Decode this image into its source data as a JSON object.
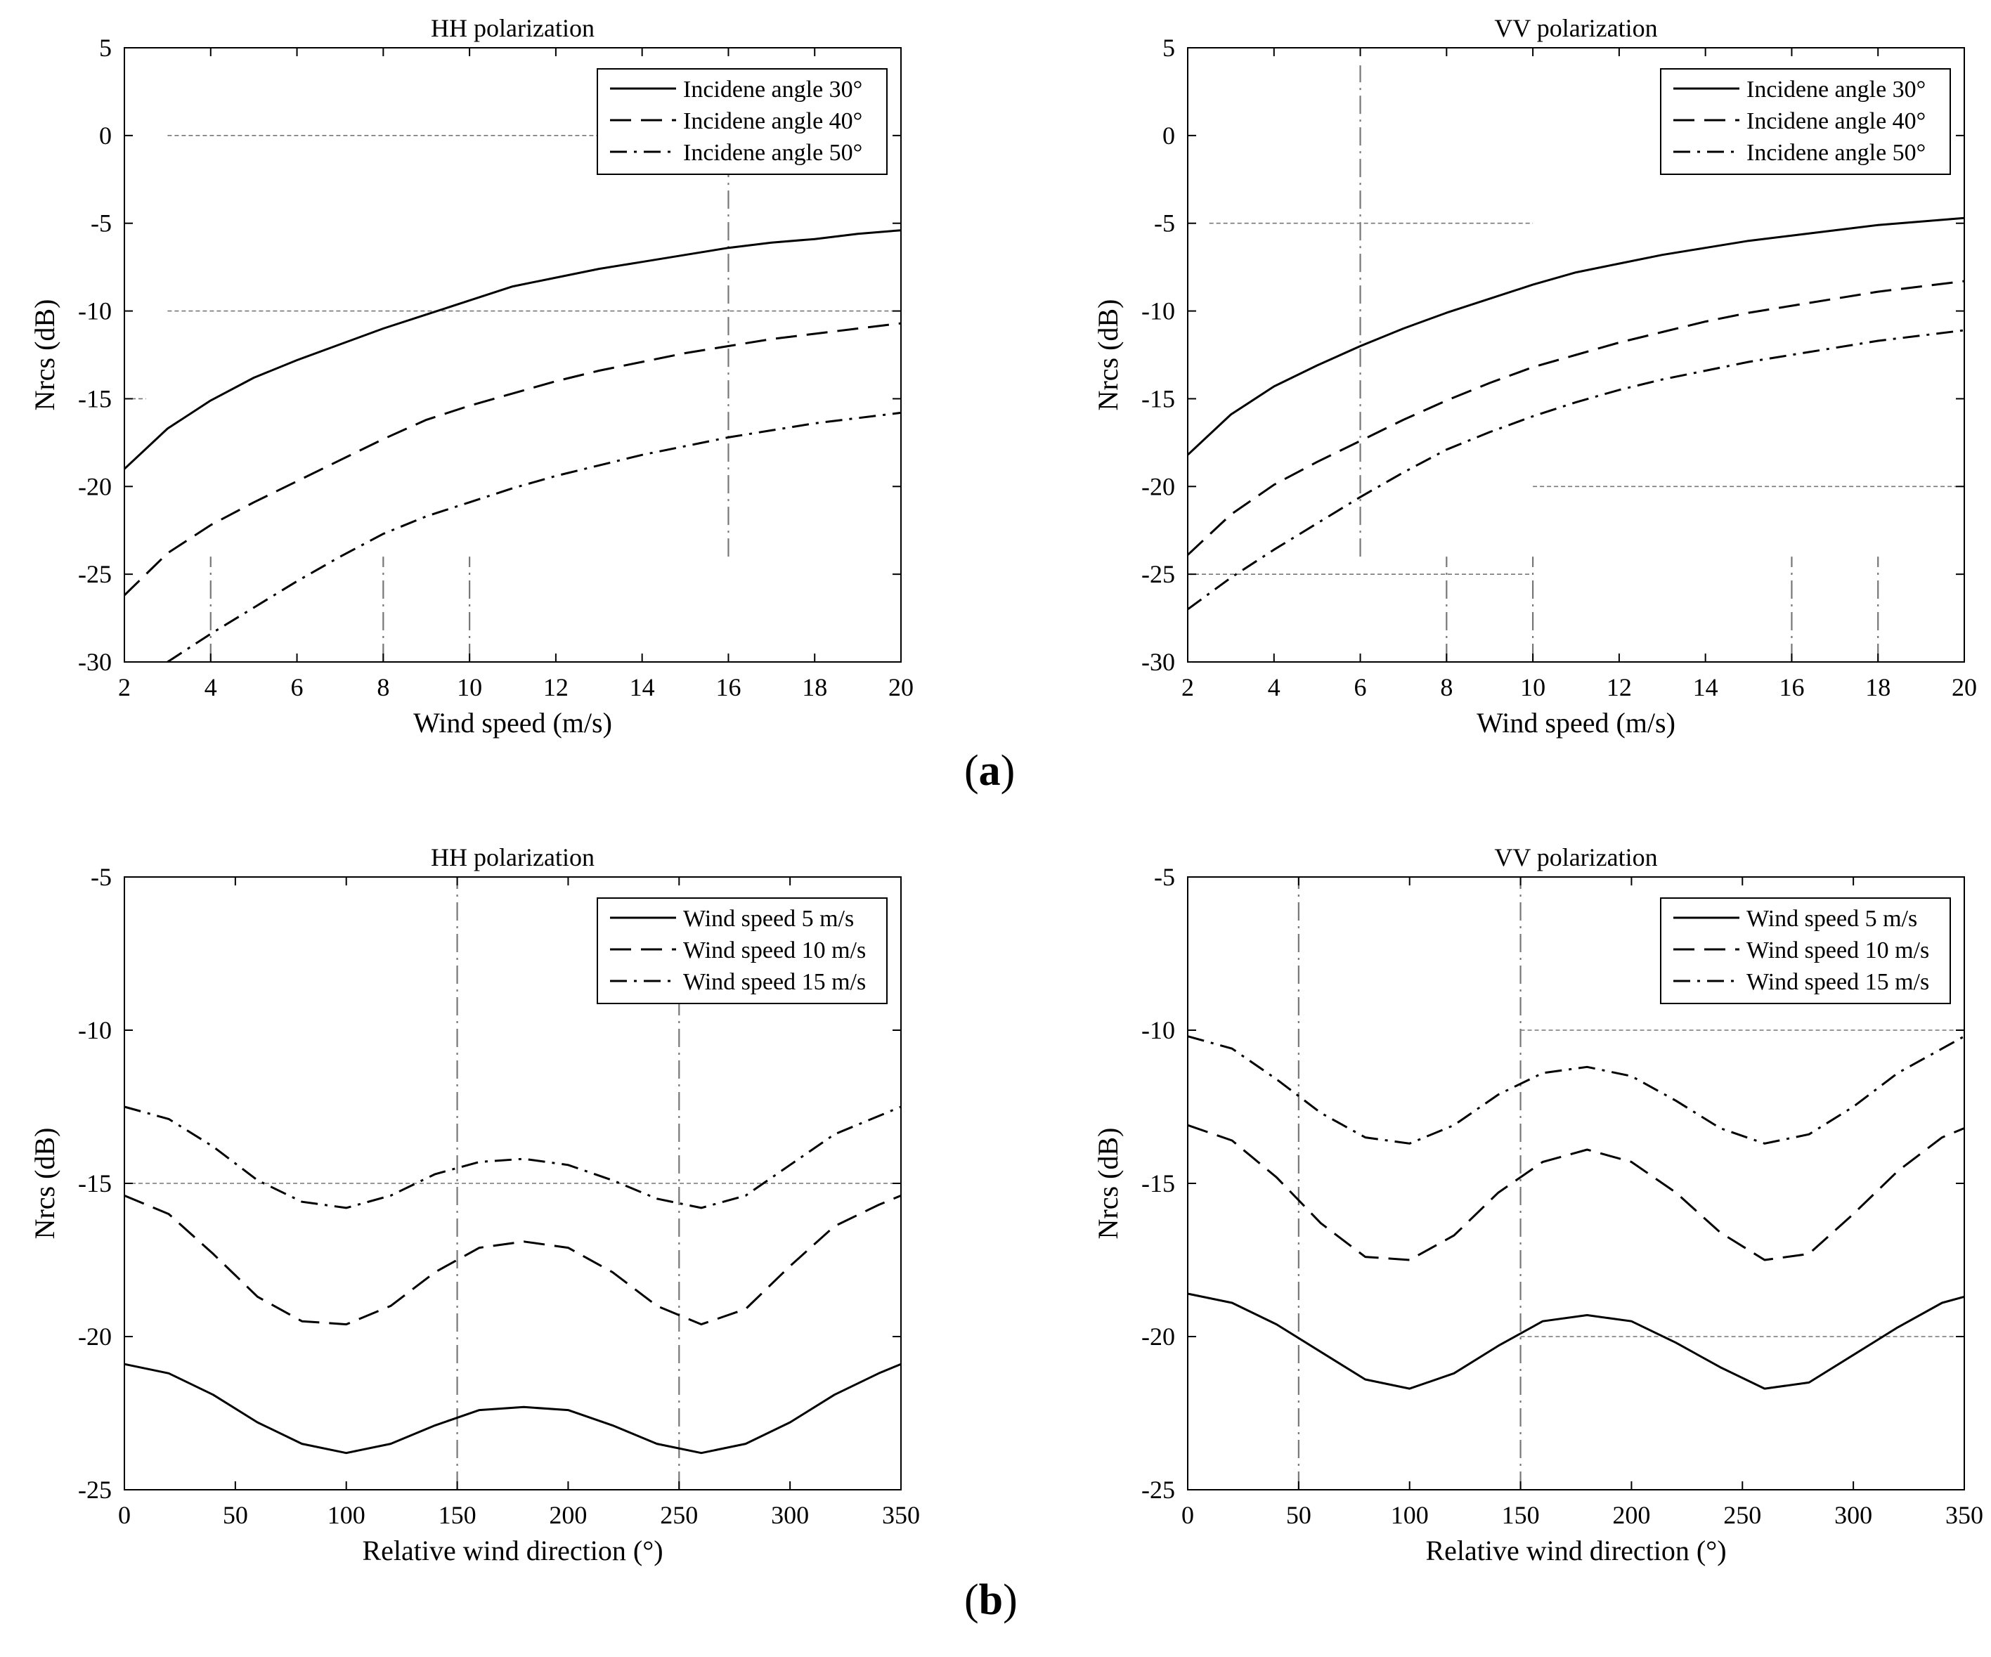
{
  "figure": {
    "panel_labels": {
      "a": "a",
      "b": "b"
    }
  },
  "chart_data": [
    {
      "id": "a-hh",
      "type": "line",
      "title": "HH polarization",
      "xlabel": "Wind speed (m/s)",
      "ylabel": "Nrcs (dB)",
      "xlim": [
        2,
        20
      ],
      "ylim": [
        -30,
        5
      ],
      "xticks": [
        2,
        4,
        6,
        8,
        10,
        12,
        14,
        16,
        18,
        20
      ],
      "yticks": [
        5,
        0,
        -5,
        -10,
        -15,
        -20,
        -25,
        -30
      ],
      "legend_position": "top-right",
      "series": [
        {
          "name": "Incidene angle 30°",
          "style": "solid",
          "x": [
            2,
            3,
            4,
            5,
            6,
            7,
            8,
            9,
            10,
            11,
            12,
            13,
            14,
            15,
            16,
            17,
            18,
            19,
            20
          ],
          "y": [
            -19,
            -16.7,
            -15.1,
            -13.8,
            -12.8,
            -11.9,
            -11.0,
            -10.2,
            -9.4,
            -8.6,
            -8.1,
            -7.6,
            -7.2,
            -6.8,
            -6.4,
            -6.1,
            -5.9,
            -5.6,
            -5.4
          ]
        },
        {
          "name": "Incidene angle 40°",
          "style": "dashed",
          "x": [
            2,
            3,
            4,
            5,
            6,
            7,
            8,
            9,
            10,
            11,
            12,
            13,
            14,
            15,
            16,
            17,
            18,
            19,
            20
          ],
          "y": [
            -26.2,
            -23.8,
            -22.2,
            -20.9,
            -19.7,
            -18.5,
            -17.3,
            -16.2,
            -15.4,
            -14.7,
            -14.0,
            -13.4,
            -12.9,
            -12.4,
            -12.0,
            -11.6,
            -11.3,
            -11.0,
            -10.7
          ]
        },
        {
          "name": "Incidene angle 50°",
          "style": "dash-dot",
          "x": [
            3,
            4,
            5,
            6,
            7,
            8,
            9,
            10,
            11,
            12,
            13,
            14,
            15,
            16,
            17,
            18,
            19,
            20
          ],
          "y": [
            -30.0,
            -28.4,
            -26.9,
            -25.4,
            -24.0,
            -22.7,
            -21.7,
            -20.9,
            -20.1,
            -19.4,
            -18.8,
            -18.2,
            -17.7,
            -17.2,
            -16.8,
            -16.4,
            -16.1,
            -15.8
          ]
        }
      ],
      "reference_lines": [
        {
          "orientation": "h",
          "value": 0,
          "from": 3,
          "to": 16
        },
        {
          "orientation": "h",
          "value": -10,
          "from": 3,
          "to": 20
        },
        {
          "orientation": "h",
          "value": -15,
          "from": 2,
          "to": 2.5
        },
        {
          "orientation": "v",
          "value": 16,
          "from": -24,
          "to": 0
        },
        {
          "orientation": "v",
          "value": 4,
          "from": -30,
          "to": -24
        },
        {
          "orientation": "v",
          "value": 8,
          "from": -30,
          "to": -24
        },
        {
          "orientation": "v",
          "value": 10,
          "from": -30,
          "to": -24
        }
      ]
    },
    {
      "id": "a-vv",
      "type": "line",
      "title": "VV polarization",
      "xlabel": "Wind speed (m/s)",
      "ylabel": "Nrcs (dB)",
      "xlim": [
        2,
        20
      ],
      "ylim": [
        -30,
        5
      ],
      "xticks": [
        2,
        4,
        6,
        8,
        10,
        12,
        14,
        16,
        18,
        20
      ],
      "yticks": [
        5,
        0,
        -5,
        -10,
        -15,
        -20,
        -25,
        -30
      ],
      "legend_position": "top-right",
      "series": [
        {
          "name": "Incidene angle 30°",
          "style": "solid",
          "x": [
            2,
            3,
            4,
            5,
            6,
            7,
            8,
            9,
            10,
            11,
            12,
            13,
            14,
            15,
            16,
            17,
            18,
            19,
            20
          ],
          "y": [
            -18.2,
            -15.9,
            -14.3,
            -13.1,
            -12.0,
            -11.0,
            -10.1,
            -9.3,
            -8.5,
            -7.8,
            -7.3,
            -6.8,
            -6.4,
            -6.0,
            -5.7,
            -5.4,
            -5.1,
            -4.9,
            -4.7
          ]
        },
        {
          "name": "Incidene angle 40°",
          "style": "dashed",
          "x": [
            2,
            3,
            4,
            5,
            6,
            7,
            8,
            9,
            10,
            11,
            12,
            13,
            14,
            15,
            16,
            17,
            18,
            19,
            20
          ],
          "y": [
            -23.9,
            -21.6,
            -19.9,
            -18.6,
            -17.4,
            -16.2,
            -15.1,
            -14.1,
            -13.2,
            -12.5,
            -11.8,
            -11.2,
            -10.6,
            -10.1,
            -9.7,
            -9.3,
            -8.9,
            -8.6,
            -8.3
          ]
        },
        {
          "name": "Incidene angle 50°",
          "style": "dash-dot",
          "x": [
            2,
            3,
            4,
            5,
            6,
            7,
            8,
            9,
            10,
            11,
            12,
            13,
            14,
            15,
            16,
            17,
            18,
            19,
            20
          ],
          "y": [
            -27.0,
            -25.2,
            -23.6,
            -22.1,
            -20.6,
            -19.2,
            -17.9,
            -16.9,
            -16.0,
            -15.2,
            -14.5,
            -13.9,
            -13.4,
            -12.9,
            -12.5,
            -12.1,
            -11.7,
            -11.4,
            -11.1
          ]
        }
      ],
      "reference_lines": [
        {
          "orientation": "h",
          "value": -5,
          "from": 2.5,
          "to": 10
        },
        {
          "orientation": "h",
          "value": -25,
          "from": 2,
          "to": 10
        },
        {
          "orientation": "h",
          "value": -20,
          "from": 10,
          "to": 20
        },
        {
          "orientation": "v",
          "value": 6,
          "from": -24,
          "to": 4
        },
        {
          "orientation": "v",
          "value": 8,
          "from": -30,
          "to": -24
        },
        {
          "orientation": "v",
          "value": 10,
          "from": -30,
          "to": -24
        },
        {
          "orientation": "v",
          "value": 16,
          "from": -30,
          "to": -24
        },
        {
          "orientation": "v",
          "value": 18,
          "from": -30,
          "to": -24
        }
      ]
    },
    {
      "id": "b-hh",
      "type": "line",
      "title": "HH polarization",
      "xlabel": "Relative wind direction (°)",
      "ylabel": "Nrcs (dB)",
      "xlim": [
        0,
        350
      ],
      "ylim": [
        -25,
        -5
      ],
      "xticks": [
        0,
        50,
        100,
        150,
        200,
        250,
        300,
        350
      ],
      "yticks": [
        -5,
        -10,
        -15,
        -20,
        -25
      ],
      "legend_position": "top-right",
      "series": [
        {
          "name": "Wind speed 5 m/s",
          "style": "solid",
          "x": [
            0,
            20,
            40,
            60,
            80,
            100,
            120,
            140,
            160,
            180,
            200,
            220,
            240,
            260,
            280,
            300,
            320,
            340,
            350
          ],
          "y": [
            -20.9,
            -21.2,
            -21.9,
            -22.8,
            -23.5,
            -23.8,
            -23.5,
            -22.9,
            -22.4,
            -22.3,
            -22.4,
            -22.9,
            -23.5,
            -23.8,
            -23.5,
            -22.8,
            -21.9,
            -21.2,
            -20.9
          ]
        },
        {
          "name": "Wind speed 10 m/s",
          "style": "dashed",
          "x": [
            0,
            20,
            40,
            60,
            80,
            100,
            120,
            140,
            160,
            180,
            200,
            220,
            240,
            260,
            280,
            300,
            320,
            340,
            350
          ],
          "y": [
            -15.4,
            -16.0,
            -17.3,
            -18.7,
            -19.5,
            -19.6,
            -19.0,
            -17.9,
            -17.1,
            -16.9,
            -17.1,
            -17.9,
            -19.0,
            -19.6,
            -19.1,
            -17.7,
            -16.4,
            -15.7,
            -15.4
          ]
        },
        {
          "name": "Wind speed 15 m/s",
          "style": "dash-dot",
          "x": [
            0,
            20,
            40,
            60,
            80,
            100,
            120,
            140,
            160,
            180,
            200,
            220,
            240,
            260,
            280,
            300,
            320,
            340,
            350
          ],
          "y": [
            -12.5,
            -12.9,
            -13.8,
            -14.9,
            -15.6,
            -15.8,
            -15.4,
            -14.7,
            -14.3,
            -14.2,
            -14.4,
            -14.9,
            -15.5,
            -15.8,
            -15.4,
            -14.4,
            -13.4,
            -12.8,
            -12.5
          ]
        }
      ],
      "reference_lines": [
        {
          "orientation": "h",
          "value": -15,
          "from": 0,
          "to": 350
        },
        {
          "orientation": "v",
          "value": 150,
          "from": -25,
          "to": -5
        },
        {
          "orientation": "v",
          "value": 250,
          "from": -25,
          "to": -9
        }
      ]
    },
    {
      "id": "b-vv",
      "type": "line",
      "title": "VV polarization",
      "xlabel": "Relative wind direction (°)",
      "ylabel": "Nrcs (dB)",
      "xlim": [
        0,
        350
      ],
      "ylim": [
        -25,
        -5
      ],
      "xticks": [
        0,
        50,
        100,
        150,
        200,
        250,
        300,
        350
      ],
      "yticks": [
        -5,
        -10,
        -15,
        -20,
        -25
      ],
      "legend_position": "top-right",
      "series": [
        {
          "name": "Wind speed 5 m/s",
          "style": "solid",
          "x": [
            0,
            20,
            40,
            60,
            80,
            100,
            120,
            140,
            160,
            180,
            200,
            220,
            240,
            260,
            280,
            300,
            320,
            340,
            350
          ],
          "y": [
            -18.6,
            -18.9,
            -19.6,
            -20.5,
            -21.4,
            -21.7,
            -21.2,
            -20.3,
            -19.5,
            -19.3,
            -19.5,
            -20.2,
            -21.0,
            -21.7,
            -21.5,
            -20.6,
            -19.7,
            -18.9,
            -18.7
          ]
        },
        {
          "name": "Wind speed 10 m/s",
          "style": "dashed",
          "x": [
            0,
            20,
            40,
            60,
            80,
            100,
            120,
            140,
            160,
            180,
            200,
            220,
            240,
            260,
            280,
            300,
            320,
            340,
            350
          ],
          "y": [
            -13.1,
            -13.6,
            -14.8,
            -16.3,
            -17.4,
            -17.5,
            -16.7,
            -15.3,
            -14.3,
            -13.9,
            -14.3,
            -15.3,
            -16.6,
            -17.5,
            -17.3,
            -16.0,
            -14.6,
            -13.5,
            -13.2
          ]
        },
        {
          "name": "Wind speed 15 m/s",
          "style": "dash-dot",
          "x": [
            0,
            20,
            40,
            60,
            80,
            100,
            120,
            140,
            160,
            180,
            200,
            220,
            240,
            260,
            280,
            300,
            320,
            340,
            350
          ],
          "y": [
            -10.2,
            -10.6,
            -11.6,
            -12.7,
            -13.5,
            -13.7,
            -13.1,
            -12.1,
            -11.4,
            -11.2,
            -11.5,
            -12.3,
            -13.2,
            -13.7,
            -13.4,
            -12.5,
            -11.4,
            -10.6,
            -10.2
          ]
        }
      ],
      "reference_lines": [
        {
          "orientation": "h",
          "value": -10,
          "from": 150,
          "to": 350
        },
        {
          "orientation": "h",
          "value": -20,
          "from": 150,
          "to": 350
        },
        {
          "orientation": "v",
          "value": 50,
          "from": -25,
          "to": -5
        },
        {
          "orientation": "v",
          "value": 150,
          "from": -25,
          "to": -5
        }
      ]
    }
  ]
}
